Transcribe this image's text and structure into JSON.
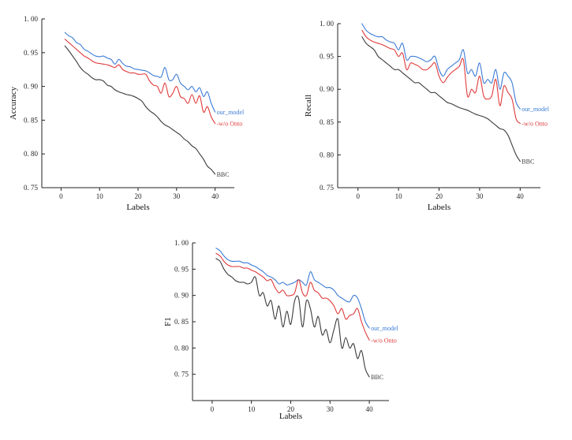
{
  "chart_data": [
    {
      "type": "line",
      "title": "",
      "xlabel": "Labels",
      "ylabel": "Accuracy",
      "xlim": [
        -5,
        45
      ],
      "ylim": [
        0.75,
        1.0
      ],
      "xticks": [
        0,
        10,
        20,
        30,
        40
      ],
      "xtick_labels": [
        "0",
        "10",
        "20",
        "30",
        "40"
      ],
      "yticks": [
        0.75,
        0.8,
        0.85,
        0.9,
        0.95,
        1.0
      ],
      "ytick_labels": [
        "0. 75",
        "0. 80",
        "0. 85",
        "0. 90",
        "0. 95",
        "1. 00"
      ],
      "x": [
        1,
        2,
        3,
        4,
        5,
        6,
        7,
        8,
        9,
        10,
        11,
        12,
        13,
        14,
        15,
        16,
        17,
        18,
        19,
        20,
        21,
        22,
        23,
        24,
        25,
        26,
        27,
        28,
        29,
        30,
        31,
        32,
        33,
        34,
        35,
        36,
        37,
        38,
        39,
        40
      ],
      "series": [
        {
          "name": "our_model",
          "label": "our_model",
          "color": "#3a7bd5",
          "values": [
            0.98,
            0.975,
            0.972,
            0.965,
            0.962,
            0.955,
            0.952,
            0.948,
            0.945,
            0.944,
            0.945,
            0.942,
            0.94,
            0.933,
            0.94,
            0.934,
            0.93,
            0.929,
            0.926,
            0.925,
            0.924,
            0.923,
            0.92,
            0.916,
            0.915,
            0.914,
            0.928,
            0.91,
            0.91,
            0.918,
            0.905,
            0.9,
            0.895,
            0.9,
            0.892,
            0.898,
            0.885,
            0.892,
            0.875,
            0.862
          ]
        },
        {
          "name": "-w/o Onto",
          "label": "-w/o Onto",
          "color": "#e03a3a",
          "values": [
            0.97,
            0.965,
            0.96,
            0.955,
            0.95,
            0.945,
            0.942,
            0.938,
            0.935,
            0.934,
            0.933,
            0.932,
            0.93,
            0.928,
            0.932,
            0.925,
            0.922,
            0.92,
            0.92,
            0.918,
            0.918,
            0.918,
            0.908,
            0.902,
            0.9,
            0.89,
            0.905,
            0.885,
            0.89,
            0.9,
            0.885,
            0.882,
            0.875,
            0.888,
            0.875,
            0.886,
            0.862,
            0.87,
            0.855,
            0.845
          ]
        },
        {
          "name": "BBC",
          "label": "BBC",
          "color": "#3a3a3a",
          "values": [
            0.96,
            0.953,
            0.945,
            0.937,
            0.928,
            0.922,
            0.918,
            0.913,
            0.91,
            0.91,
            0.908,
            0.902,
            0.9,
            0.895,
            0.892,
            0.89,
            0.888,
            0.887,
            0.885,
            0.882,
            0.878,
            0.87,
            0.864,
            0.86,
            0.855,
            0.848,
            0.843,
            0.84,
            0.836,
            0.832,
            0.828,
            0.822,
            0.818,
            0.812,
            0.808,
            0.8,
            0.792,
            0.782,
            0.777,
            0.77
          ]
        }
      ]
    },
    {
      "type": "line",
      "title": "",
      "xlabel": "Labels",
      "ylabel": "Recall",
      "xlim": [
        -5,
        45
      ],
      "ylim": [
        0.75,
        1.0
      ],
      "xticks": [
        0,
        10,
        20,
        30,
        40
      ],
      "xtick_labels": [
        "0",
        "10",
        "20",
        "30",
        "40"
      ],
      "yticks": [
        0.75,
        0.8,
        0.85,
        0.9,
        0.95,
        1.0
      ],
      "ytick_labels": [
        "0. 75",
        "0. 80",
        "0. 85",
        "0. 90",
        "0. 95",
        "1. 00"
      ],
      "x": [
        1,
        2,
        3,
        4,
        5,
        6,
        7,
        8,
        9,
        10,
        11,
        12,
        13,
        14,
        15,
        16,
        17,
        18,
        19,
        20,
        21,
        22,
        23,
        24,
        25,
        26,
        27,
        28,
        29,
        30,
        31,
        32,
        33,
        34,
        35,
        36,
        37,
        38,
        39,
        40
      ],
      "series": [
        {
          "name": "our_model",
          "label": "our_model",
          "color": "#3a7bd5",
          "values": [
            1.0,
            0.99,
            0.985,
            0.982,
            0.98,
            0.98,
            0.975,
            0.972,
            0.97,
            0.96,
            0.97,
            0.945,
            0.95,
            0.95,
            0.948,
            0.945,
            0.942,
            0.945,
            0.95,
            0.93,
            0.92,
            0.93,
            0.935,
            0.94,
            0.945,
            0.96,
            0.925,
            0.93,
            0.92,
            0.94,
            0.91,
            0.915,
            0.91,
            0.93,
            0.9,
            0.925,
            0.92,
            0.91,
            0.88,
            0.87
          ]
        },
        {
          "name": "-w/o Onto",
          "label": "-w/o Onto",
          "color": "#e03a3a",
          "values": [
            0.99,
            0.98,
            0.975,
            0.972,
            0.97,
            0.968,
            0.965,
            0.962,
            0.96,
            0.95,
            0.955,
            0.93,
            0.94,
            0.938,
            0.935,
            0.93,
            0.93,
            0.935,
            0.94,
            0.92,
            0.91,
            0.918,
            0.925,
            0.93,
            0.935,
            0.945,
            0.89,
            0.9,
            0.895,
            0.92,
            0.89,
            0.885,
            0.89,
            0.915,
            0.875,
            0.905,
            0.895,
            0.885,
            0.855,
            0.848
          ]
        },
        {
          "name": "BBC",
          "label": "BBC",
          "color": "#3a3a3a",
          "values": [
            0.98,
            0.97,
            0.965,
            0.96,
            0.95,
            0.945,
            0.94,
            0.935,
            0.93,
            0.93,
            0.925,
            0.92,
            0.915,
            0.91,
            0.91,
            0.905,
            0.9,
            0.895,
            0.895,
            0.89,
            0.885,
            0.88,
            0.878,
            0.875,
            0.872,
            0.87,
            0.868,
            0.865,
            0.862,
            0.86,
            0.858,
            0.855,
            0.85,
            0.845,
            0.84,
            0.838,
            0.83,
            0.815,
            0.8,
            0.79
          ]
        }
      ]
    },
    {
      "type": "line",
      "title": "",
      "xlabel": "Labels",
      "ylabel": "F1",
      "xlim": [
        -5,
        45
      ],
      "ylim": [
        0.7,
        1.0
      ],
      "xticks": [
        0,
        10,
        20,
        30,
        40
      ],
      "xtick_labels": [
        "0",
        "10",
        "20",
        "30",
        "40"
      ],
      "yticks": [
        0.75,
        0.8,
        0.85,
        0.9,
        0.95,
        1.0
      ],
      "ytick_labels": [
        "0. 75",
        "0. 80",
        "0. 85",
        "0. 90",
        "0. 95",
        "1. 00"
      ],
      "x": [
        1,
        2,
        3,
        4,
        5,
        6,
        7,
        8,
        9,
        10,
        11,
        12,
        13,
        14,
        15,
        16,
        17,
        18,
        19,
        20,
        21,
        22,
        23,
        24,
        25,
        26,
        27,
        28,
        29,
        30,
        31,
        32,
        33,
        34,
        35,
        36,
        37,
        38,
        39,
        40
      ],
      "series": [
        {
          "name": "our_model",
          "label": "our_model",
          "color": "#3a7bd5",
          "values": [
            0.99,
            0.985,
            0.975,
            0.968,
            0.965,
            0.965,
            0.965,
            0.962,
            0.962,
            0.958,
            0.955,
            0.95,
            0.945,
            0.938,
            0.935,
            0.93,
            0.922,
            0.925,
            0.92,
            0.922,
            0.925,
            0.93,
            0.925,
            0.92,
            0.945,
            0.93,
            0.925,
            0.92,
            0.915,
            0.915,
            0.91,
            0.9,
            0.895,
            0.89,
            0.888,
            0.9,
            0.895,
            0.875,
            0.85,
            0.838
          ]
        },
        {
          "name": "-w/o Onto",
          "label": "-w/o Onto",
          "color": "#e03a3a",
          "values": [
            0.98,
            0.975,
            0.965,
            0.958,
            0.955,
            0.955,
            0.955,
            0.952,
            0.952,
            0.948,
            0.945,
            0.94,
            0.935,
            0.928,
            0.93,
            0.915,
            0.905,
            0.91,
            0.9,
            0.9,
            0.905,
            0.93,
            0.905,
            0.9,
            0.925,
            0.91,
            0.905,
            0.895,
            0.895,
            0.89,
            0.88,
            0.865,
            0.875,
            0.855,
            0.862,
            0.865,
            0.875,
            0.85,
            0.83,
            0.815
          ]
        },
        {
          "name": "BBC",
          "label": "BBC",
          "color": "#3a3a3a",
          "values": [
            0.97,
            0.965,
            0.95,
            0.94,
            0.935,
            0.928,
            0.925,
            0.925,
            0.922,
            0.925,
            0.935,
            0.9,
            0.905,
            0.88,
            0.89,
            0.855,
            0.88,
            0.84,
            0.87,
            0.845,
            0.89,
            0.895,
            0.84,
            0.89,
            0.875,
            0.84,
            0.86,
            0.825,
            0.835,
            0.81,
            0.835,
            0.855,
            0.8,
            0.82,
            0.8,
            0.808,
            0.78,
            0.795,
            0.76,
            0.745
          ]
        }
      ]
    }
  ]
}
